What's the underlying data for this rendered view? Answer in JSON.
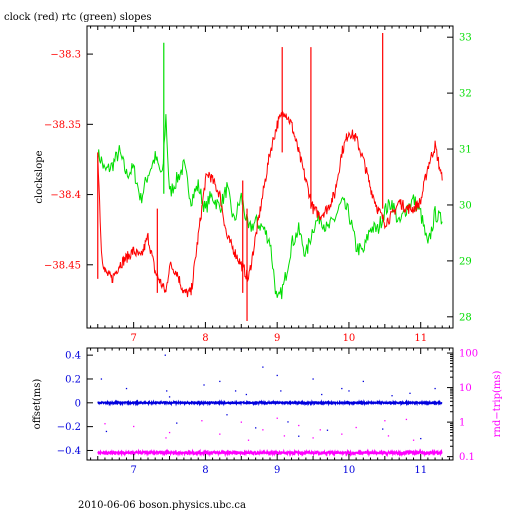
{
  "figure": {
    "title": "clock (red) rtc (green) slopes",
    "footer": "2010-06-06 boson.physics.ubc.ca"
  },
  "colors": {
    "clock": "#ff0000",
    "rtc": "#00dd00",
    "offset": "#0000dd",
    "roundtrip": "#ff00ff",
    "axis": "#000000"
  },
  "chart_data": [
    {
      "type": "line",
      "title": "clock (red) rtc (green) slopes",
      "xlabel": "",
      "ylabel": "clockslope",
      "xlim": [
        6.35,
        11.45
      ],
      "xticks": [
        7,
        8,
        9,
        10,
        11
      ],
      "ylim": [
        -38.495,
        -38.28
      ],
      "yticks": [
        -38.3,
        -38.35,
        -38.4,
        -38.45
      ],
      "ytick_labels": [
        "−38.3",
        "−38.35",
        "−38.4",
        "−38.45"
      ],
      "y2label": "",
      "y2lim": [
        27.8,
        33.2
      ],
      "y2ticks": [
        28,
        29,
        30,
        31,
        32,
        33
      ],
      "grid": false,
      "series": [
        {
          "name": "clock",
          "axis": "left",
          "x": [
            6.5,
            6.55,
            6.6,
            6.7,
            6.8,
            6.9,
            7.0,
            7.1,
            7.2,
            7.3,
            7.4,
            7.45,
            7.5,
            7.6,
            7.7,
            7.8,
            7.9,
            8.0,
            8.05,
            8.1,
            8.2,
            8.3,
            8.4,
            8.5,
            8.6,
            8.7,
            8.8,
            8.9,
            9.0,
            9.05,
            9.1,
            9.2,
            9.3,
            9.4,
            9.5,
            9.6,
            9.7,
            9.8,
            9.9,
            10.0,
            10.1,
            10.2,
            10.3,
            10.4,
            10.5,
            10.6,
            10.7,
            10.8,
            10.9,
            11.0,
            11.1,
            11.2,
            11.3
          ],
          "y": [
            -38.37,
            -38.44,
            -38.455,
            -38.46,
            -38.45,
            -38.445,
            -38.44,
            -38.445,
            -38.43,
            -38.455,
            -38.465,
            -38.47,
            -38.45,
            -38.455,
            -38.47,
            -38.47,
            -38.43,
            -38.39,
            -38.385,
            -38.39,
            -38.4,
            -38.43,
            -38.44,
            -38.45,
            -38.46,
            -38.43,
            -38.4,
            -38.37,
            -38.35,
            -38.345,
            -38.34,
            -38.35,
            -38.37,
            -38.39,
            -38.41,
            -38.415,
            -38.41,
            -38.4,
            -38.37,
            -38.355,
            -38.36,
            -38.375,
            -38.395,
            -38.41,
            -38.42,
            -38.415,
            -38.405,
            -38.41,
            -38.41,
            -38.405,
            -38.38,
            -38.365,
            -38.39
          ]
        },
        {
          "name": "rtc",
          "axis": "right",
          "x": [
            6.5,
            6.55,
            6.6,
            6.7,
            6.8,
            6.9,
            7.0,
            7.1,
            7.2,
            7.3,
            7.4,
            7.45,
            7.5,
            7.6,
            7.7,
            7.8,
            7.9,
            8.0,
            8.05,
            8.1,
            8.2,
            8.3,
            8.4,
            8.5,
            8.6,
            8.7,
            8.8,
            8.9,
            9.0,
            9.05,
            9.1,
            9.2,
            9.3,
            9.4,
            9.5,
            9.6,
            9.7,
            9.8,
            9.9,
            10.0,
            10.1,
            10.2,
            10.3,
            10.4,
            10.5,
            10.6,
            10.7,
            10.8,
            10.9,
            11.0,
            11.1,
            11.2,
            11.3
          ],
          "y": [
            30.9,
            30.8,
            30.6,
            30.7,
            30.95,
            30.55,
            30.65,
            30.1,
            30.55,
            30.85,
            30.5,
            31.6,
            30.2,
            30.45,
            30.7,
            30.1,
            30.35,
            29.9,
            30.1,
            30.15,
            29.95,
            30.3,
            29.7,
            30.15,
            29.55,
            29.7,
            29.6,
            29.35,
            28.25,
            28.4,
            28.6,
            29.3,
            29.55,
            29.1,
            29.6,
            29.8,
            29.55,
            29.75,
            30.05,
            29.85,
            29.25,
            29.15,
            29.6,
            29.55,
            29.9,
            30.05,
            29.65,
            29.95,
            30.1,
            29.85,
            29.25,
            29.85,
            29.7
          ]
        }
      ],
      "spikes": [
        {
          "series": "clock",
          "x": 6.5,
          "y0": -38.46,
          "y1": -38.37
        },
        {
          "series": "clock",
          "x": 7.33,
          "y0": -38.47,
          "y1": -38.41
        },
        {
          "series": "clock",
          "x": 8.52,
          "y0": -38.47,
          "y1": -38.39
        },
        {
          "series": "clock",
          "x": 8.58,
          "y0": -38.49,
          "y1": -38.41
        },
        {
          "series": "clock",
          "x": 9.07,
          "y0": -38.37,
          "y1": -38.295
        },
        {
          "series": "clock",
          "x": 9.47,
          "y0": -38.41,
          "y1": -38.295
        },
        {
          "series": "clock",
          "x": 10.47,
          "y0": -38.41,
          "y1": -38.285
        },
        {
          "series": "rtc",
          "x": 7.42,
          "y0": 30.2,
          "y1": 32.9
        }
      ]
    },
    {
      "type": "scatter",
      "xlabel": "",
      "ylabel": "offset(ms)",
      "xlim": [
        6.35,
        11.45
      ],
      "xticks": [
        7,
        8,
        9,
        10,
        11
      ],
      "ylim": [
        -0.48,
        0.46
      ],
      "yticks": [
        0.4,
        0.2,
        0,
        -0.2,
        -0.4
      ],
      "ytick_labels": [
        "0.4",
        "0.2",
        "0",
        "−0.2",
        "−0.4"
      ],
      "y2label": "rnd−trip(ms)",
      "y2scale": "log",
      "y2lim": [
        0.08,
        140
      ],
      "y2ticks": [
        0.1,
        1,
        10,
        100
      ],
      "y2tick_labels": [
        "0.1",
        "1",
        "10",
        "100"
      ],
      "grid": false,
      "series": [
        {
          "name": "offset",
          "axis": "left",
          "x": [
            6.5,
            11.3
          ],
          "y": [
            0.0,
            0.0
          ]
        },
        {
          "name": "rnd-trip",
          "axis": "right",
          "x": [
            6.5,
            11.3
          ],
          "y": [
            0.13,
            0.13
          ]
        }
      ],
      "outliers_offset": {
        "x": [
          6.55,
          6.62,
          6.9,
          7.44,
          7.46,
          7.5,
          7.6,
          7.98,
          8.2,
          8.3,
          8.42,
          8.5,
          8.57,
          8.7,
          8.8,
          9.0,
          9.05,
          9.15,
          9.3,
          9.5,
          9.62,
          9.7,
          9.9,
          10.0,
          10.2,
          10.47,
          10.6,
          10.85,
          11.0,
          11.2
        ],
        "y": [
          0.2,
          -0.24,
          0.12,
          0.4,
          0.1,
          0.05,
          -0.17,
          0.15,
          0.18,
          -0.1,
          0.1,
          0.45,
          0.07,
          -0.21,
          0.3,
          0.23,
          0.1,
          -0.16,
          -0.28,
          0.2,
          0.07,
          -0.23,
          0.12,
          0.1,
          0.18,
          -0.22,
          0.06,
          0.08,
          -0.3,
          0.12
        ]
      },
      "outliers_roundtrip": {
        "x": [
          6.6,
          7.0,
          7.45,
          7.5,
          7.95,
          8.2,
          8.5,
          8.6,
          8.8,
          9.0,
          9.1,
          9.3,
          9.5,
          9.6,
          9.9,
          10.1,
          10.5,
          10.55,
          10.8,
          10.9
        ],
        "y": [
          0.9,
          0.75,
          0.35,
          0.5,
          1.1,
          0.45,
          1.0,
          0.3,
          0.6,
          1.3,
          0.4,
          0.8,
          0.35,
          0.6,
          0.45,
          0.7,
          1.1,
          0.4,
          1.2,
          0.3
        ]
      }
    }
  ]
}
